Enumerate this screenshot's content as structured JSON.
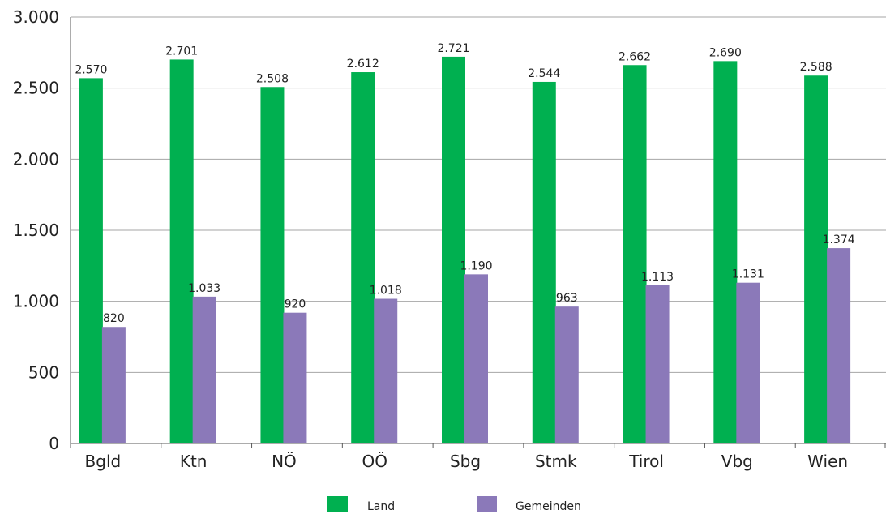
{
  "chart_data": {
    "type": "bar",
    "categories": [
      "Bgld",
      "Ktn",
      "NÖ",
      "OÖ",
      "Sbg",
      "Stmk",
      "Tirol",
      "Vbg",
      "Wien"
    ],
    "series": [
      {
        "name": "Land",
        "color": "#00b050",
        "values": [
          2570,
          2701,
          2508,
          2612,
          2721,
          2544,
          2662,
          2690,
          2588
        ],
        "labels": [
          "2.570",
          "2.701",
          "2.508",
          "2.612",
          "2.721",
          "2.544",
          "2.662",
          "2.690",
          "2.588"
        ]
      },
      {
        "name": "Gemeinden",
        "color": "#8b79b9",
        "values": [
          820,
          1033,
          920,
          1018,
          1190,
          963,
          1113,
          1131,
          1374
        ],
        "labels": [
          "820",
          "1.033",
          "920",
          "1.018",
          "1.190",
          "963",
          "1.113",
          "1.131",
          "1.374"
        ]
      }
    ],
    "yticks": [
      {
        "value": 0,
        "label": "0"
      },
      {
        "value": 500,
        "label": "500"
      },
      {
        "value": 1000,
        "label": "1.000"
      },
      {
        "value": 1500,
        "label": "1.500"
      },
      {
        "value": 2000,
        "label": "2.000"
      },
      {
        "value": 2500,
        "label": "2.500"
      },
      {
        "value": 3000,
        "label": "3.000"
      }
    ],
    "ylim": [
      0,
      3000
    ],
    "grid": true,
    "legend_position": "bottom"
  }
}
